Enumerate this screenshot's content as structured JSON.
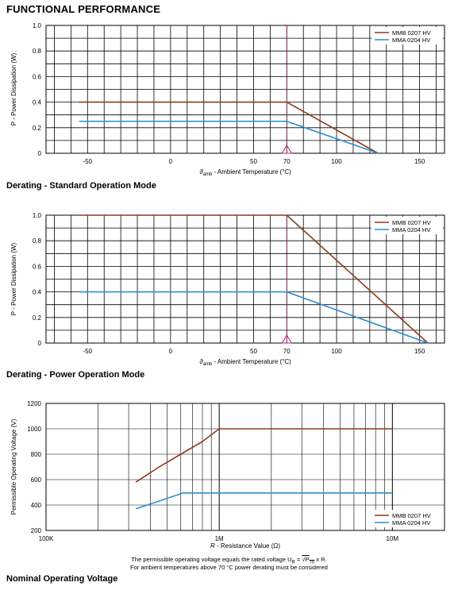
{
  "page_title": "FUNCTIONAL PERFORMANCE",
  "colors": {
    "series1": "#8B3A1E",
    "series2": "#2A8FD0",
    "marker": "#B0207A",
    "grid": "#000000"
  },
  "chart_data": [
    {
      "type": "line",
      "caption": "Derating - Standard Operation Mode",
      "title": "",
      "xlabel": "ϑ_amb - Ambient Temperature (°C)",
      "xlabel_main": "ϑ",
      "xlabel_sub": "amb",
      "xlabel_rest": " - Ambient Temperature (°C)",
      "ylabel": "P - Power Dissipation (W)",
      "xlim": [
        -75,
        165
      ],
      "ylim": [
        0,
        1.0
      ],
      "xticks": [
        "-50",
        "0",
        "50",
        "70",
        "100",
        "150"
      ],
      "yticks": [
        "0",
        "0.2",
        "0.4",
        "0.6",
        "0.8",
        "1.0"
      ],
      "marker_x": 70,
      "series": [
        {
          "name": "MMB 0207 HV",
          "x": [
            -55,
            70,
            125
          ],
          "y": [
            0.4,
            0.4,
            0
          ]
        },
        {
          "name": "MMA 0204 HV",
          "x": [
            -55,
            70,
            125
          ],
          "y": [
            0.25,
            0.25,
            0
          ]
        }
      ]
    },
    {
      "type": "line",
      "caption": "Derating - Power Operation Mode",
      "title": "",
      "xlabel": "ϑ_amb - Ambient Temperature (°C)",
      "xlabel_main": "ϑ",
      "xlabel_sub": "amb",
      "xlabel_rest": " - Ambient Temperature (°C)",
      "ylabel": "P - Power Dissipation (W)",
      "xlim": [
        -75,
        165
      ],
      "ylim": [
        0,
        1.0
      ],
      "xticks": [
        "-50",
        "0",
        "50",
        "70",
        "100",
        "150"
      ],
      "yticks": [
        "0",
        "0.2",
        "0.4",
        "0.6",
        "0.8",
        "1.0"
      ],
      "marker_x": 70,
      "series": [
        {
          "name": "MMB 0207 HV",
          "x": [
            -55,
            70,
            155
          ],
          "y": [
            1.0,
            1.0,
            0
          ]
        },
        {
          "name": "MMA 0204 HV",
          "x": [
            -55,
            70,
            155
          ],
          "y": [
            0.4,
            0.4,
            0
          ]
        }
      ]
    },
    {
      "type": "line",
      "caption": "Nominal Operating Voltage",
      "title": "",
      "xlabel": "R - Resistance Value (Ω)",
      "xlabel_main": "R",
      "xlabel_rest": " - Resistance Value (Ω)",
      "ylabel": "Permissible Operating Voltage (V)",
      "xscale": "log",
      "xlim": [
        100000,
        20000000
      ],
      "ylim": [
        200,
        1200
      ],
      "xticks": [
        "100K",
        "1M",
        "10M"
      ],
      "yticks": [
        "200",
        "400",
        "600",
        "800",
        "1000",
        "1200"
      ],
      "series": [
        {
          "name": "MMB 0207 HV",
          "x": [
            330000,
            450000,
            600000,
            800000,
            1000000,
            10000000
          ],
          "y": [
            580,
            700,
            800,
            900,
            1000,
            1000
          ]
        },
        {
          "name": "MMA 0204 HV",
          "x": [
            330000,
            620000,
            10000000
          ],
          "y": [
            370,
            495,
            495
          ]
        }
      ],
      "note_line1_pre": "The permissible operating voltage equals the rated voltage U",
      "note_line1_sub": "R",
      "note_line1_eq": " = ",
      "note_line1_expr": "√P",
      "note_line1_expr_sub": "70",
      "note_line1_expr_rest": " x R.",
      "note_line2": "For ambient temperatures above 70 °C power derating must be considered"
    }
  ]
}
